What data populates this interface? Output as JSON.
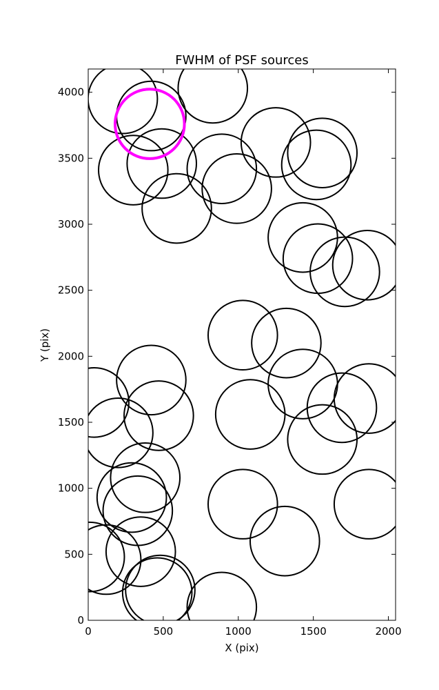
{
  "chart_data": {
    "type": "scatter",
    "title": "FWHM of PSF sources",
    "xlabel": "X (pix)",
    "ylabel": "Y (pix)",
    "xlim": [
      0,
      2048
    ],
    "ylim": [
      0,
      4176
    ],
    "xticks": [
      0,
      500,
      1000,
      1500,
      2000
    ],
    "yticks": [
      0,
      500,
      1000,
      1500,
      2000,
      2500,
      3000,
      3500,
      4000
    ],
    "grid": false,
    "legend": "none",
    "marker_radius_x": 231,
    "series": [
      {
        "color": "#000000",
        "points": [
          {
            "x": 230,
            "y": 3950
          },
          {
            "x": 420,
            "y": 3820
          },
          {
            "x": 830,
            "y": 4030
          },
          {
            "x": 1250,
            "y": 3620
          },
          {
            "x": 1560,
            "y": 3540
          },
          {
            "x": 1520,
            "y": 3450
          },
          {
            "x": 890,
            "y": 3420
          },
          {
            "x": 990,
            "y": 3270
          },
          {
            "x": 490,
            "y": 3460
          },
          {
            "x": 300,
            "y": 3410
          },
          {
            "x": 590,
            "y": 3120
          },
          {
            "x": 1430,
            "y": 2900
          },
          {
            "x": 1530,
            "y": 2740
          },
          {
            "x": 1710,
            "y": 2640
          },
          {
            "x": 1860,
            "y": 2690
          },
          {
            "x": 1030,
            "y": 2160
          },
          {
            "x": 1320,
            "y": 2100
          },
          {
            "x": 1430,
            "y": 1790
          },
          {
            "x": 1690,
            "y": 1610
          },
          {
            "x": 1870,
            "y": 1680
          },
          {
            "x": 1560,
            "y": 1370
          },
          {
            "x": 1080,
            "y": 1560
          },
          {
            "x": 420,
            "y": 1820
          },
          {
            "x": 470,
            "y": 1550
          },
          {
            "x": 40,
            "y": 1650
          },
          {
            "x": 200,
            "y": 1420
          },
          {
            "x": 380,
            "y": 1080
          },
          {
            "x": 290,
            "y": 930
          },
          {
            "x": 330,
            "y": 830
          },
          {
            "x": 350,
            "y": 520
          },
          {
            "x": 120,
            "y": 460
          },
          {
            "x": 10,
            "y": 480
          },
          {
            "x": 480,
            "y": 230
          },
          {
            "x": 460,
            "y": 210
          },
          {
            "x": 890,
            "y": 100
          },
          {
            "x": 1030,
            "y": 880
          },
          {
            "x": 1310,
            "y": 600
          },
          {
            "x": 1870,
            "y": 880
          }
        ]
      },
      {
        "color": "#ff00ff",
        "points": [
          {
            "x": 410,
            "y": 3760
          }
        ]
      }
    ]
  }
}
